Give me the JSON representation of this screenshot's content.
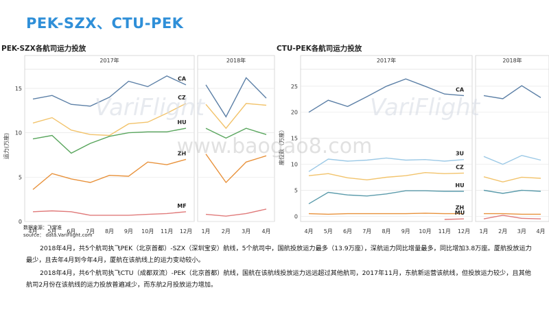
{
  "page_title": "PEK-SZX、CTU-PEK",
  "source_label": "数据来源：飞常准",
  "source_line": "source： data.VariFlight.com",
  "watermark_brand": "VariFlight",
  "watermark_site": "www.baogao8.com",
  "paragraphs": [
    "2018年4月，共5个航司执飞PEK（北京首都）-SZX（深圳宝安）航线，5个航司中，国航投放运力最多（13.9万座），深航运力同比增量最多，同比增加3.8万座。厦航投放运力最少，且去年4月到今年4月，厦航在该航线上的运力变动较小。",
    "2018年4月，共6个航司执飞CTU（成都双流）-PEK（北京首都）航线，国航在该航线投放运力远远超过其他航司，2017年11月，东航新运营该航线，但投放运力较少，且其他航司2月份在该航线的运力投放普遍减少，而东航2月投放运力增加。"
  ],
  "chart_data": [
    {
      "type": "line",
      "title": "PEK-SZX各航司运力投放",
      "ylabel": "运力(万座)",
      "panels": [
        "2017年",
        "2018年"
      ],
      "categories_2017": [
        "4月",
        "5月",
        "6月",
        "7月",
        "8月",
        "9月",
        "10月",
        "11月",
        "12月"
      ],
      "categories_2018": [
        "1月",
        "2月",
        "3月",
        "4月"
      ],
      "ylim": [
        0,
        17
      ],
      "yticks": [
        0,
        5,
        10,
        15
      ],
      "series": [
        {
          "name": "CA",
          "color": "#5b7fa6",
          "v2017": [
            13.8,
            14.2,
            13.2,
            13.0,
            14.0,
            15.8,
            15.2,
            16.4,
            15.4
          ],
          "v2018": [
            15.4,
            11.8,
            16.2,
            13.9
          ]
        },
        {
          "name": "CZ",
          "color": "#f2c36b",
          "v2017": [
            11.1,
            11.7,
            10.3,
            9.8,
            9.7,
            11.0,
            11.2,
            12.2,
            13.3
          ],
          "v2018": [
            13.2,
            10.5,
            13.3,
            13.1
          ]
        },
        {
          "name": "HU",
          "color": "#58a55c",
          "v2017": [
            9.3,
            9.7,
            7.7,
            8.8,
            9.6,
            10.0,
            10.1,
            10.1,
            10.5
          ],
          "v2018": [
            10.5,
            9.4,
            10.5,
            9.8
          ]
        },
        {
          "name": "ZH",
          "color": "#e8913a",
          "v2017": [
            3.6,
            5.4,
            4.8,
            4.4,
            5.2,
            5.1,
            6.7,
            6.4,
            7.0
          ],
          "v2018": [
            7.6,
            4.4,
            6.7,
            7.4
          ]
        },
        {
          "name": "MF",
          "color": "#e07a7a",
          "v2017": [
            1.1,
            1.2,
            1.1,
            0.7,
            0.7,
            0.7,
            0.8,
            0.9,
            1.1
          ],
          "v2018": [
            0.8,
            0.6,
            0.9,
            1.4
          ]
        }
      ]
    },
    {
      "type": "line",
      "title": "CTU-PEK各航司运力投放",
      "ylabel": "座位数（万座）",
      "panels": [
        "2017年",
        "2018年"
      ],
      "categories_2017": [
        "4月",
        "5月",
        "6月",
        "7月",
        "8月",
        "9月",
        "10月",
        "11月",
        "12月"
      ],
      "categories_2018": [
        "1月",
        "2月",
        "3月",
        "4月"
      ],
      "ylim": [
        -1,
        28
      ],
      "yticks": [
        0,
        5,
        10,
        15,
        20,
        25
      ],
      "series": [
        {
          "name": "CA",
          "color": "#5b7fa6",
          "v2017": [
            20.0,
            22.3,
            21.1,
            23.0,
            25.0,
            26.4,
            25.0,
            23.5,
            23.2
          ],
          "v2018": [
            23.2,
            22.6,
            25.1,
            22.8
          ]
        },
        {
          "name": "3U",
          "color": "#9cc9e6",
          "v2017": [
            8.6,
            11.0,
            10.6,
            10.8,
            11.2,
            10.8,
            10.9,
            10.6,
            10.9
          ],
          "v2018": [
            11.5,
            10.0,
            11.7,
            10.8
          ]
        },
        {
          "name": "CZ",
          "color": "#f2c36b",
          "v2017": [
            7.8,
            8.2,
            7.4,
            7.0,
            7.5,
            7.8,
            8.4,
            8.2,
            8.3
          ],
          "v2018": [
            7.6,
            6.6,
            7.5,
            7.3
          ]
        },
        {
          "name": "HU",
          "color": "#5b9bab",
          "v2017": [
            2.4,
            4.6,
            4.1,
            3.9,
            4.3,
            4.9,
            4.9,
            4.8,
            4.8
          ],
          "v2018": [
            5.0,
            4.4,
            5.0,
            4.8
          ]
        },
        {
          "name": "ZH",
          "color": "#e8913a",
          "v2017": [
            0.5,
            0.4,
            0.5,
            0.5,
            0.5,
            0.5,
            0.6,
            0.5,
            0.5
          ],
          "v2018": [
            0.5,
            0.5,
            0.4,
            0.4
          ]
        },
        {
          "name": "MU",
          "color": "#e07a7a",
          "v2017": [
            null,
            null,
            null,
            null,
            null,
            null,
            null,
            -0.6,
            -0.5
          ],
          "v2018": [
            -0.5,
            0.2,
            -0.4,
            -0.5
          ]
        }
      ]
    }
  ]
}
